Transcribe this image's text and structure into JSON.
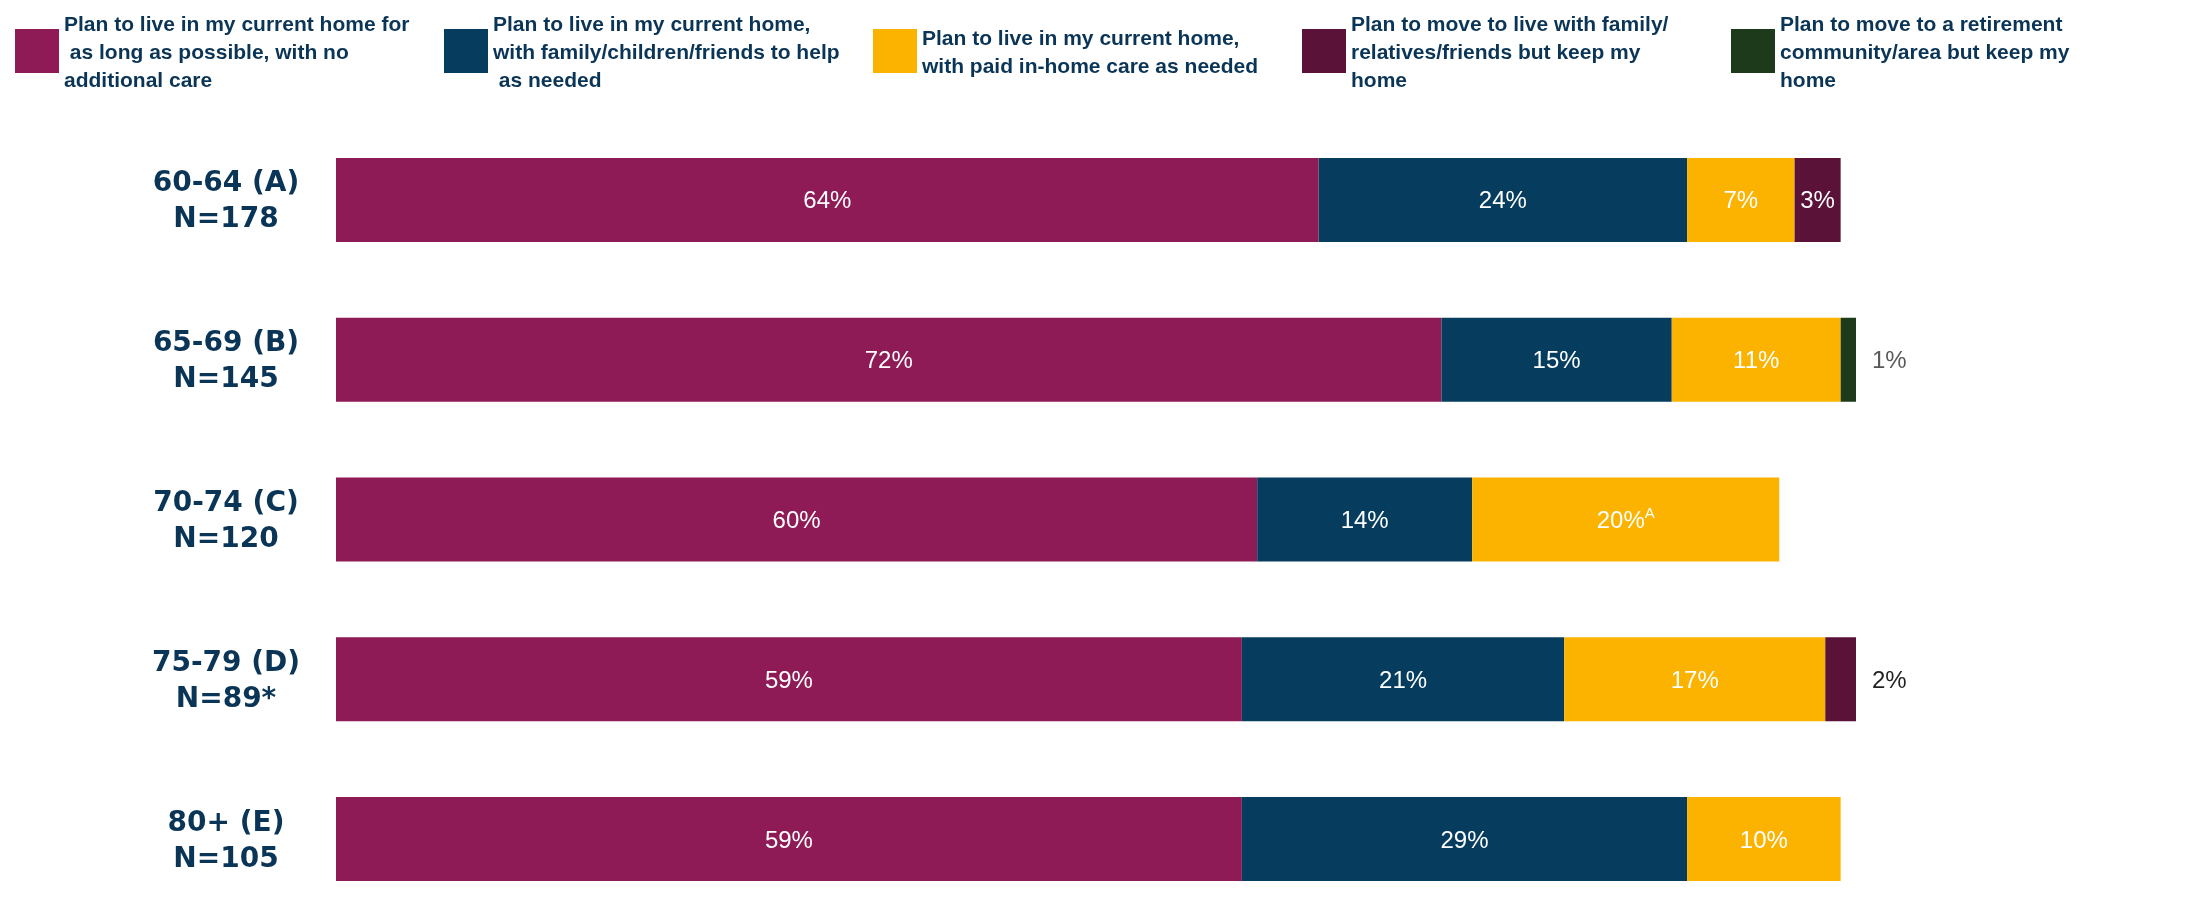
{
  "chart_data": {
    "type": "bar",
    "orientation": "horizontal",
    "stacked": true,
    "legend": "top",
    "categories": [
      "60-64 (A)\nN=178",
      "65-69 (B)\nN=145",
      "70-74 (C)\nN=120",
      "75-79 (D)\nN=89*",
      "80+ (E)\nN=105"
    ],
    "series": [
      {
        "name": "Plan to live in my current home for as long as possible, with no additional care",
        "color": "#8e1a56",
        "values": [
          64,
          72,
          60,
          59,
          59
        ],
        "value_labels": [
          "64%",
          "72%",
          "60%",
          "59%",
          "59%"
        ]
      },
      {
        "name": "Plan to live in my current home, with family/children/friends to help as needed",
        "color": "#063c5e",
        "values": [
          24,
          15,
          14,
          21,
          29
        ],
        "value_labels": [
          "24%",
          "15%",
          "14%",
          "21%",
          "29%"
        ]
      },
      {
        "name": "Plan to live in my current home, with paid in-home care as needed",
        "color": "#fbb300",
        "values": [
          7,
          11,
          20,
          17,
          10
        ],
        "value_labels": [
          "7%",
          "11%",
          "20%$^{A}$",
          "17%",
          "10%"
        ]
      },
      {
        "name": "Plan to move to live with family/relatives/friends but keep my home",
        "color": "#5a1238",
        "values": [
          3,
          null,
          null,
          2,
          null
        ],
        "value_labels": [
          "3%",
          null,
          null,
          "2%",
          null
        ]
      },
      {
        "name": "Plan to move to a retirement community/area but keep my home",
        "color": "#1d3b1a",
        "values": [
          null,
          1,
          null,
          null,
          null
        ],
        "value_labels": [
          null,
          "1%",
          null,
          null,
          null
        ]
      }
    ]
  }
}
